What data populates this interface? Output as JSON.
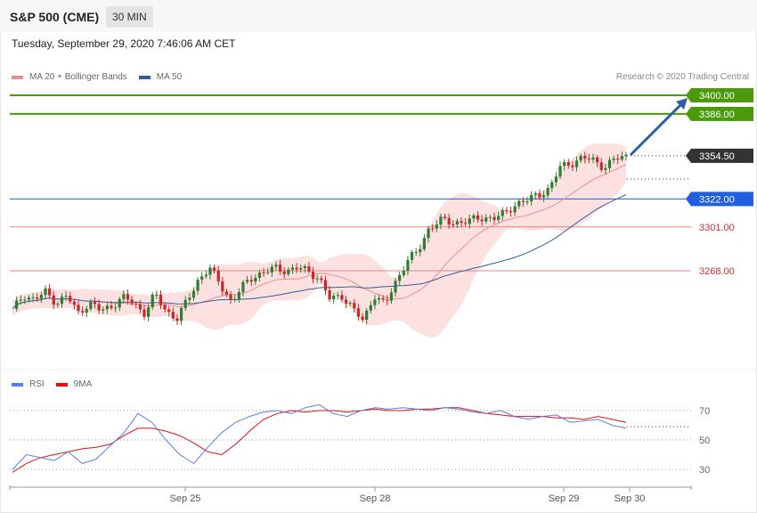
{
  "header": {
    "title": "S&P 500 (CME)",
    "interval": "30 MIN"
  },
  "timestamp": "Tuesday, September 29, 2020 7:46:06 AM CET",
  "legend": [
    {
      "label": "MA 20 + Bollinger Bands",
      "color": "#f28b8b"
    },
    {
      "label": "MA 50",
      "color": "#2d5fa3"
    }
  ],
  "copyright": "Research © 2020 Trading Central",
  "rsi_legend": [
    {
      "label": "RSI",
      "color": "#5b7fe0"
    },
    {
      "label": "9MA",
      "color": "#e01010"
    }
  ],
  "colors": {
    "up": "#2e7d32",
    "down": "#c62828",
    "target": "#4a9a0c",
    "support": "#f08080",
    "pivot": "#1f5fe0",
    "current": "#333333",
    "arrow": "#2d5fa3",
    "band": "#fde0e0",
    "ma20": "#f28b8b",
    "ma50": "#2d5fa3"
  },
  "chart_data": [
    {
      "type": "candlestick",
      "title": "S&P 500 (CME)",
      "interval": "30 MIN",
      "ylim": [
        3200,
        3425
      ],
      "x_ticks": [
        "Sep 25",
        "Sep 28",
        "Sep 29",
        "Sep 30"
      ],
      "close_series": [
        3238,
        3250,
        3246,
        3252,
        3244,
        3249,
        3236,
        3244,
        3238,
        3241,
        3248,
        3244,
        3236,
        3250,
        3238,
        3232,
        3246,
        3262,
        3270,
        3257,
        3245,
        3256,
        3264,
        3267,
        3270,
        3268,
        3270,
        3268,
        3262,
        3246,
        3250,
        3240,
        3230,
        3250,
        3242,
        3260,
        3276,
        3282,
        3300,
        3306,
        3304,
        3305,
        3306,
        3308,
        3308,
        3311,
        3319,
        3321,
        3325,
        3330,
        3346,
        3349,
        3353,
        3351,
        3346,
        3352,
        3354
      ],
      "levels": [
        {
          "label": "3400.00",
          "value": 3400.0,
          "role": "target"
        },
        {
          "label": "3386.00",
          "value": 3386.0,
          "role": "target"
        },
        {
          "label": "3354.50",
          "value": 3354.5,
          "role": "current"
        },
        {
          "label": "3322.00",
          "value": 3322.0,
          "role": "pivot"
        },
        {
          "label": "3301.00",
          "value": 3301.0,
          "role": "support"
        },
        {
          "label": "3268.00",
          "value": 3268.0,
          "role": "support"
        }
      ],
      "indicators": [
        "MA 20 + Bollinger Bands",
        "MA 50"
      ]
    },
    {
      "type": "line",
      "title": "",
      "ylim": [
        20,
        80
      ],
      "y_ticks": [
        70,
        50,
        30
      ],
      "series": [
        {
          "name": "RSI",
          "values": [
            30,
            40,
            38,
            36,
            42,
            34,
            37,
            46,
            55,
            68,
            62,
            50,
            40,
            34,
            45,
            55,
            62,
            66,
            69,
            70,
            68,
            72,
            74,
            68,
            66,
            70,
            72,
            71,
            72,
            71,
            70,
            72,
            71,
            69,
            68,
            70,
            66,
            64,
            66,
            67,
            62,
            63,
            64,
            60,
            58
          ]
        },
        {
          "name": "9MA",
          "values": [
            28,
            34,
            38,
            40,
            42,
            44,
            45,
            47,
            53,
            58,
            58,
            56,
            53,
            48,
            42,
            40,
            47,
            56,
            64,
            68,
            70,
            69,
            70,
            70,
            69,
            70,
            71,
            70,
            70,
            71,
            71,
            72,
            72,
            70,
            68,
            67,
            66,
            66,
            66,
            65,
            65,
            64,
            66,
            64,
            62
          ]
        }
      ]
    }
  ]
}
